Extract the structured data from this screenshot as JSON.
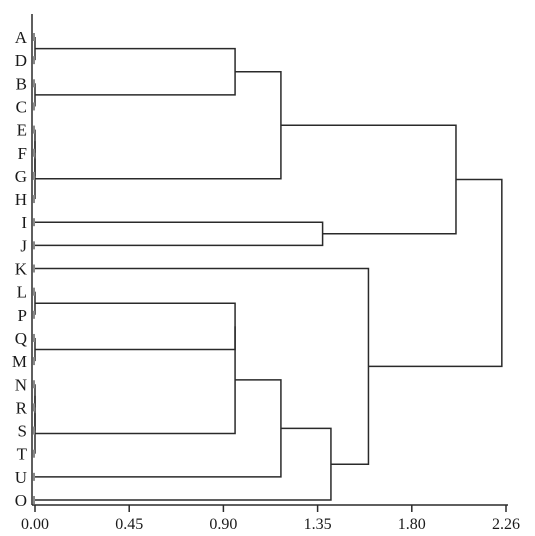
{
  "chart_data": {
    "type": "dendrogram",
    "orientation": "horizontal",
    "leaves": [
      "A",
      "D",
      "B",
      "C",
      "E",
      "F",
      "G",
      "H",
      "I",
      "J",
      "K",
      "L",
      "P",
      "Q",
      "M",
      "N",
      "R",
      "S",
      "T",
      "U",
      "O"
    ],
    "x_ticks": [
      "0.00",
      "0.45",
      "0.90",
      "1.35",
      "1.80",
      "2.26"
    ],
    "xlim": [
      0,
      2.26
    ],
    "merges": [
      {
        "left": [
          "A"
        ],
        "right": [
          "D"
        ],
        "height": 0.0
      },
      {
        "left": [
          "B"
        ],
        "right": [
          "C"
        ],
        "height": 0.0
      },
      {
        "left": [
          "A",
          "D"
        ],
        "right": [
          "B",
          "C"
        ],
        "height": 0.96
      },
      {
        "left": [
          "E"
        ],
        "right": [
          "F"
        ],
        "height": 0.0
      },
      {
        "left": [
          "E",
          "F"
        ],
        "right": [
          "G"
        ],
        "height": 0.0
      },
      {
        "left": [
          "E",
          "F",
          "G"
        ],
        "right": [
          "H"
        ],
        "height": 0.0
      },
      {
        "left": [
          "A",
          "D",
          "B",
          "C"
        ],
        "right": [
          "E",
          "F",
          "G",
          "H"
        ],
        "height": 1.18
      },
      {
        "left": [
          "I"
        ],
        "right": [
          "J"
        ],
        "height": 1.38
      },
      {
        "left": [
          "A",
          "D",
          "B",
          "C",
          "E",
          "F",
          "G",
          "H"
        ],
        "right": [
          "I",
          "J"
        ],
        "height": 2.02
      },
      {
        "left": [
          "L"
        ],
        "right": [
          "P"
        ],
        "height": 0.0
      },
      {
        "left": [
          "Q"
        ],
        "right": [
          "M"
        ],
        "height": 0.0
      },
      {
        "left": [
          "L",
          "P"
        ],
        "right": [
          "Q",
          "M"
        ],
        "height": 0.96
      },
      {
        "left": [
          "N"
        ],
        "right": [
          "R"
        ],
        "height": 0.0
      },
      {
        "left": [
          "N",
          "R"
        ],
        "right": [
          "S"
        ],
        "height": 0.0
      },
      {
        "left": [
          "N",
          "R",
          "S"
        ],
        "right": [
          "T"
        ],
        "height": 0.0
      },
      {
        "left": [
          "L",
          "P",
          "Q",
          "M"
        ],
        "right": [
          "N",
          "R",
          "S",
          "T"
        ],
        "height": 0.96
      },
      {
        "left": [
          "L",
          "P",
          "Q",
          "M",
          "N",
          "R",
          "S",
          "T"
        ],
        "right": [
          "U"
        ],
        "height": 1.18
      },
      {
        "left": [
          "L",
          "P",
          "Q",
          "M",
          "N",
          "R",
          "S",
          "T",
          "U"
        ],
        "right": [
          "O"
        ],
        "height": 1.42
      },
      {
        "left": [
          "K"
        ],
        "right": [
          "L",
          "P",
          "Q",
          "M",
          "N",
          "R",
          "S",
          "T",
          "U",
          "O"
        ],
        "height": 1.6
      },
      {
        "left": [
          "A",
          "D",
          "B",
          "C",
          "E",
          "F",
          "G",
          "H",
          "I",
          "J"
        ],
        "right": [
          "K",
          "L",
          "P",
          "Q",
          "M",
          "N",
          "R",
          "S",
          "T",
          "U",
          "O"
        ],
        "height": 2.24
      }
    ],
    "title": "",
    "xlabel": "",
    "ylabel": ""
  }
}
